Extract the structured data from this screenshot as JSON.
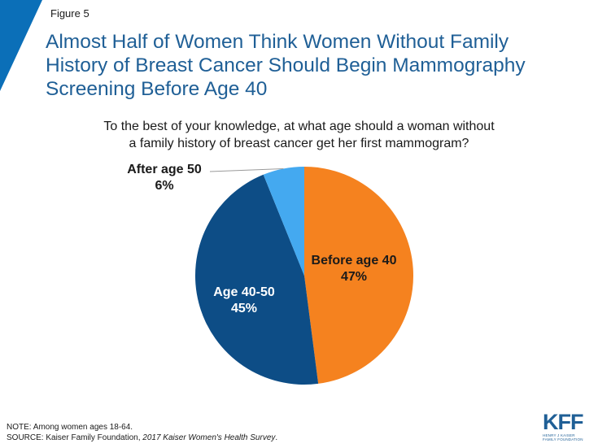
{
  "header": {
    "figure_label": "Figure 5",
    "title_lines": [
      "Almost Half of Women Think Women Without Family",
      "History of Breast Cancer Should Begin Mammography",
      "Screening Before Age 40"
    ]
  },
  "question_lines": [
    "To the best of your knowledge, at what age should a woman without",
    "a family history of breast cancer get her first mammogram?"
  ],
  "chart_data": {
    "type": "pie",
    "title": "",
    "slices": [
      {
        "label": "Before age 40",
        "value": 47,
        "value_label": "47%",
        "color": "#f5821f",
        "label_color": "#1a1a1a"
      },
      {
        "label": "Age 40-50",
        "value": 45,
        "value_label": "45%",
        "color": "#0d4d86",
        "label_color": "#ffffff"
      },
      {
        "label": "After age 50",
        "value": 6,
        "value_label": "6%",
        "color": "#44a9f0",
        "label_color": "#1a1a1a"
      }
    ]
  },
  "footer": {
    "note": "NOTE: Among women ages 18-64.",
    "source_prefix": "SOURCE: Kaiser Family Foundation, ",
    "source_title": "2017 Kaiser Women's Health Survey",
    "source_suffix": "."
  },
  "logo": {
    "mark": "KFF",
    "sub_lines": [
      "HENRY J KAISER",
      "FAMILY FOUNDATION"
    ]
  },
  "colors": {
    "accent": "#0b6fb8",
    "title": "#1f5f96"
  }
}
